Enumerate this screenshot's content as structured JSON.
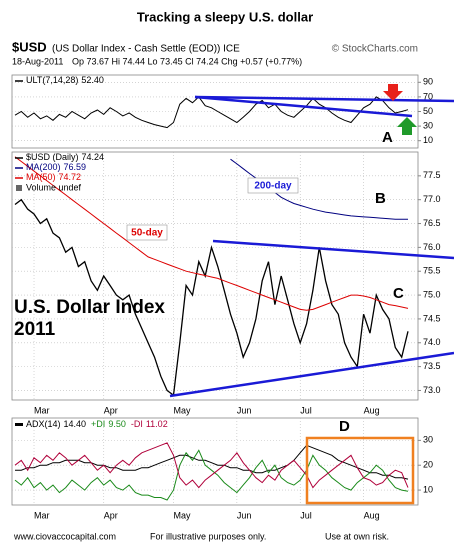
{
  "header": {
    "title": "Tracking a sleepy U.S. dollar",
    "symbol": "$USD",
    "description": "(US Dollar Index - Cash Settle (EOD)) ICE",
    "source": "© StockCharts.com",
    "date": "18-Aug-2011",
    "quote": "Op 73.67 Hi 74.44 Lo 73.45 Cl 74.24 Chg +0.57 (+0.77%)"
  },
  "annotations": {
    "a": "A",
    "b": "B",
    "c": "C",
    "d": "D",
    "ma200": "200-day",
    "ma50": "50-day",
    "index_title": "U.S. Dollar Index",
    "index_year": "2011"
  },
  "footer": {
    "site": "www.ciovaccocapital.com",
    "note": "For illustrative purposes only.",
    "risk": "Use at own risk."
  },
  "chart_data": [
    {
      "type": "line",
      "ylim": [
        0,
        100
      ],
      "yticks": [
        10,
        30,
        50,
        70,
        90
      ],
      "grid": true,
      "series": [
        {
          "name": "ULT(7,14,28)",
          "legend_value": "52.40",
          "color": "#000000",
          "values": [
            45,
            50,
            42,
            48,
            40,
            44,
            38,
            46,
            42,
            50,
            45,
            40,
            48,
            52,
            46,
            55,
            50,
            44,
            48,
            42,
            38,
            35,
            32,
            30,
            28,
            35,
            60,
            68,
            62,
            70,
            58,
            55,
            50,
            45,
            40,
            35,
            42,
            50,
            60,
            65,
            55,
            60,
            50,
            45,
            42,
            50,
            58,
            68,
            60,
            55,
            48,
            42,
            38,
            35,
            45,
            55,
            60,
            70,
            65,
            55,
            48,
            50,
            52.4
          ]
        }
      ]
    },
    {
      "type": "line",
      "ylim": [
        72.8,
        78.0
      ],
      "grid": true,
      "yticks": [
        {
          "value": 73,
          "label": "73.0"
        },
        73.5,
        {
          "value": 74,
          "label": "74.0"
        },
        74.5,
        {
          "value": 75,
          "label": "75.0"
        },
        75.5,
        {
          "value": 76,
          "label": "76.0"
        },
        76.5,
        {
          "value": 77,
          "label": "77.0"
        },
        77.5
      ],
      "volume_label": "Volume undef",
      "categories": [
        null,
        null,
        null,
        "Mar",
        null,
        null,
        null,
        null,
        null,
        null,
        null,
        null,
        null,
        null,
        "Apr",
        null,
        null,
        null,
        null,
        null,
        null,
        null,
        null,
        null,
        null,
        "May",
        null,
        null,
        null,
        null,
        null,
        null,
        null,
        null,
        null,
        "Jun",
        null,
        null,
        null,
        null,
        null,
        null,
        null,
        null,
        null,
        "Jul",
        null,
        null,
        null,
        null,
        null,
        null,
        null,
        null,
        null,
        "Aug",
        null,
        null,
        null,
        null,
        null,
        null,
        null
      ],
      "series": [
        {
          "name": "$USD (Daily)",
          "legend_value": "74.24",
          "color": "#000000",
          "values": [
            76.9,
            77.0,
            76.8,
            76.7,
            76.5,
            76.6,
            76.3,
            76.2,
            75.9,
            76.0,
            75.6,
            75.7,
            75.3,
            75.1,
            75.4,
            75.2,
            75.0,
            74.9,
            75.0,
            74.6,
            74.3,
            74.0,
            73.7,
            73.3,
            73.0,
            72.9,
            74.0,
            75.2,
            75.0,
            75.7,
            75.4,
            76.0,
            75.6,
            75.1,
            74.6,
            74.2,
            73.7,
            74.0,
            74.5,
            75.3,
            75.7,
            74.8,
            75.4,
            74.9,
            74.4,
            74.0,
            74.4,
            75.1,
            76.0,
            75.3,
            74.8,
            74.6,
            74.0,
            73.7,
            73.5,
            74.6,
            74.2,
            75.0,
            74.7,
            74.5,
            73.9,
            73.7,
            74.24
          ]
        },
        {
          "name": "MA(200)",
          "legend_value": "76.59",
          "color": "#000080",
          "values": [
            null,
            null,
            null,
            null,
            null,
            null,
            null,
            null,
            null,
            null,
            null,
            null,
            null,
            null,
            null,
            null,
            null,
            null,
            null,
            null,
            null,
            null,
            null,
            null,
            null,
            null,
            null,
            null,
            null,
            null,
            null,
            null,
            null,
            null,
            77.85,
            77.75,
            77.65,
            77.55,
            77.45,
            77.35,
            77.25,
            77.15,
            77.05,
            76.98,
            76.92,
            76.88,
            76.84,
            76.8,
            76.77,
            76.74,
            76.72,
            76.7,
            76.68,
            76.66,
            76.65,
            76.64,
            76.63,
            76.62,
            76.61,
            76.6,
            76.59,
            76.59,
            76.59
          ]
        },
        {
          "name": "MA(50)",
          "legend_value": "74.72",
          "color": "#dd0000",
          "values": [
            77.9,
            77.8,
            77.7,
            77.6,
            77.5,
            77.4,
            77.3,
            77.2,
            77.1,
            77.0,
            76.9,
            76.8,
            76.7,
            76.6,
            76.5,
            76.4,
            76.3,
            76.2,
            76.1,
            76.0,
            75.9,
            75.8,
            75.75,
            75.7,
            75.65,
            75.6,
            75.55,
            75.5,
            75.47,
            75.44,
            75.41,
            75.38,
            75.35,
            75.3,
            75.25,
            75.2,
            75.15,
            75.1,
            75.05,
            75.0,
            74.95,
            74.9,
            74.85,
            74.8,
            74.75,
            74.7,
            74.68,
            74.7,
            74.75,
            74.8,
            74.85,
            74.9,
            74.95,
            75.0,
            75.0,
            74.98,
            74.95,
            74.9,
            74.85,
            74.8,
            74.78,
            74.75,
            74.72
          ]
        }
      ]
    },
    {
      "type": "line",
      "ylim": [
        4,
        39
      ],
      "yticks": [
        10,
        20,
        30
      ],
      "grid": true,
      "categories": [
        null,
        null,
        null,
        "Mar",
        null,
        null,
        null,
        null,
        null,
        null,
        null,
        null,
        null,
        null,
        "Apr",
        null,
        null,
        null,
        null,
        null,
        null,
        null,
        null,
        null,
        null,
        "May",
        null,
        null,
        null,
        null,
        null,
        null,
        null,
        null,
        null,
        "Jun",
        null,
        null,
        null,
        null,
        null,
        null,
        null,
        null,
        null,
        "Jul",
        null,
        null,
        null,
        null,
        null,
        null,
        null,
        null,
        null,
        "Aug",
        null,
        null,
        null,
        null,
        null,
        null,
        null
      ],
      "series": [
        {
          "name": "ADX(14)",
          "legend_value": "14.40",
          "color": "#000000",
          "values": [
            18,
            18,
            19,
            19,
            20,
            20,
            21,
            21,
            22,
            22,
            22,
            21,
            21,
            20,
            20,
            19,
            19,
            18,
            18,
            18,
            19,
            19,
            20,
            21,
            22,
            23,
            24,
            24,
            23,
            22,
            22,
            21,
            20,
            20,
            19,
            19,
            18,
            18,
            17,
            17,
            18,
            18,
            19,
            20,
            22,
            25,
            28,
            27,
            26,
            25,
            24,
            22,
            21,
            20,
            19,
            18,
            17,
            17,
            16,
            16,
            15,
            15,
            14.4
          ]
        },
        {
          "name": "+DI",
          "legend_value": "9.50",
          "color": "#1a8a1a",
          "values": [
            14,
            12,
            15,
            11,
            13,
            10,
            12,
            9,
            11,
            14,
            12,
            10,
            13,
            15,
            12,
            14,
            11,
            10,
            12,
            9,
            8,
            8,
            7,
            7,
            6,
            10,
            20,
            25,
            22,
            26,
            20,
            18,
            16,
            13,
            11,
            9,
            12,
            15,
            19,
            22,
            17,
            20,
            15,
            13,
            12,
            14,
            18,
            24,
            20,
            18,
            15,
            13,
            11,
            10,
            13,
            15,
            17,
            20,
            18,
            14,
            11,
            10,
            9.5
          ]
        },
        {
          "name": "-DI",
          "legend_value": "11.02",
          "color": "#b0003a",
          "values": [
            20,
            22,
            18,
            23,
            21,
            24,
            22,
            25,
            23,
            20,
            22,
            24,
            21,
            18,
            20,
            17,
            20,
            22,
            20,
            23,
            25,
            26,
            27,
            28,
            29,
            24,
            15,
            12,
            14,
            11,
            14,
            16,
            18,
            20,
            22,
            25,
            21,
            18,
            15,
            13,
            16,
            14,
            18,
            20,
            22,
            19,
            16,
            11,
            14,
            16,
            18,
            20,
            22,
            24,
            19,
            15,
            14,
            12,
            13,
            16,
            18,
            17,
            11.02
          ]
        }
      ]
    }
  ]
}
